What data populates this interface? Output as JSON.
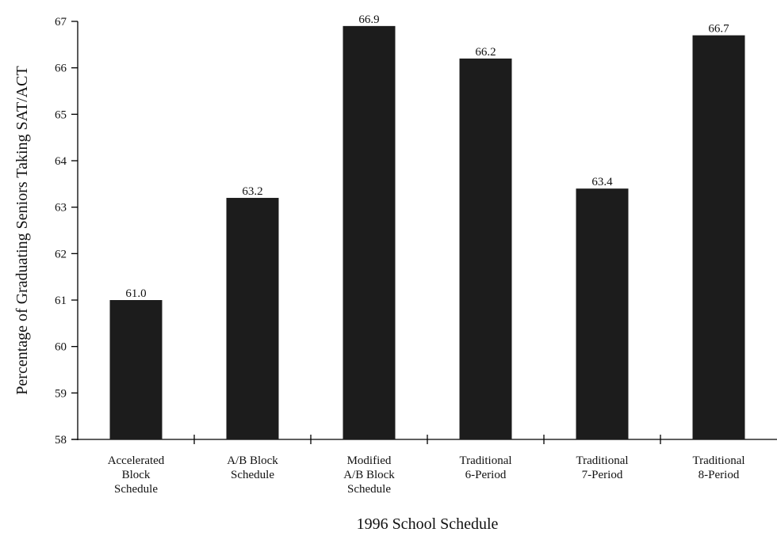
{
  "chart_data": {
    "type": "bar",
    "title": "",
    "xlabel": "1996 School Schedule",
    "ylabel": "Percentage of Graduating Seniors Taking SAT/ACT",
    "ylim": [
      58,
      67
    ],
    "yticks": [
      58,
      59,
      60,
      61,
      62,
      63,
      64,
      65,
      66,
      67
    ],
    "grid": false,
    "categories": [
      [
        "Accelerated",
        "Block",
        "Schedule"
      ],
      [
        "A/B Block",
        "Schedule"
      ],
      [
        "Modified",
        "A/B Block",
        "Schedule"
      ],
      [
        "Traditional",
        "6-Period"
      ],
      [
        "Traditional",
        "7-Period"
      ],
      [
        "Traditional",
        "8-Period"
      ]
    ],
    "values": [
      61.0,
      63.2,
      66.9,
      66.2,
      63.4,
      66.7
    ],
    "data_labels": [
      "61.0",
      "63.2",
      "66.9",
      "66.2",
      "63.4",
      "66.7"
    ],
    "colors": {
      "bar": "#1c1c1c",
      "axis": "#000000"
    }
  }
}
